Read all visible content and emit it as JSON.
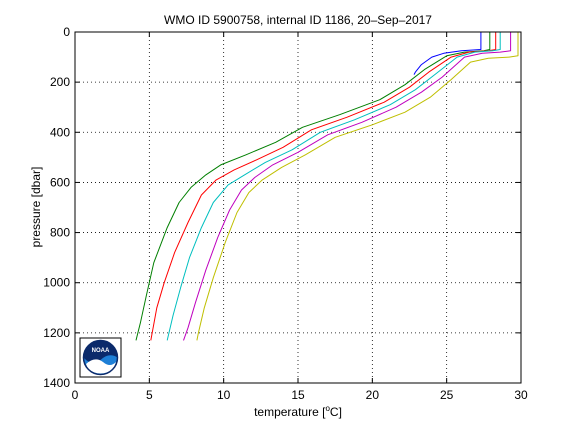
{
  "chart_data": {
    "type": "line",
    "title": "WMO ID 5900758, internal ID 1186, 20–Sep–2017",
    "xlabel_prefix": "temperature [",
    "xlabel_sup": "o",
    "xlabel_suffix": "C]",
    "ylabel": "pressure [dbar]",
    "xlim": [
      0,
      30
    ],
    "ylim": [
      0,
      1400
    ],
    "y_reversed": true,
    "grid": true,
    "x_ticks": [
      0,
      5,
      10,
      15,
      20,
      25,
      30
    ],
    "x_tick_labels": [
      "0",
      "5",
      "10",
      "15",
      "20",
      "25",
      "30"
    ],
    "y_ticks": [
      0,
      200,
      400,
      600,
      800,
      1000,
      1200,
      1400
    ],
    "y_tick_labels": [
      "0",
      "200",
      "400",
      "600",
      "800",
      "1000",
      "1200",
      "1400"
    ],
    "series": [
      {
        "color": "#0000ff",
        "points": [
          [
            27.3,
            0
          ],
          [
            27.3,
            40
          ],
          [
            27.3,
            70
          ],
          [
            26.0,
            75
          ],
          [
            24.8,
            85
          ],
          [
            24.0,
            100
          ],
          [
            23.3,
            130
          ],
          [
            22.9,
            160
          ],
          [
            22.8,
            170
          ]
        ]
      },
      {
        "color": "#007f00",
        "points": [
          [
            27.9,
            0
          ],
          [
            27.9,
            50
          ],
          [
            27.9,
            70
          ],
          [
            27.5,
            75
          ],
          [
            26.2,
            80
          ],
          [
            25.0,
            95
          ],
          [
            23.5,
            150
          ],
          [
            22.2,
            210
          ],
          [
            20.5,
            270
          ],
          [
            17.8,
            330
          ],
          [
            15.3,
            380
          ],
          [
            13.5,
            440
          ],
          [
            11.5,
            490
          ],
          [
            9.8,
            530
          ],
          [
            8.8,
            570
          ],
          [
            7.8,
            620
          ],
          [
            7.0,
            680
          ],
          [
            6.2,
            780
          ],
          [
            5.3,
            920
          ],
          [
            4.8,
            1050
          ],
          [
            4.4,
            1160
          ],
          [
            4.1,
            1230
          ]
        ]
      },
      {
        "color": "#ff0000",
        "points": [
          [
            28.3,
            0
          ],
          [
            28.3,
            50
          ],
          [
            28.3,
            70
          ],
          [
            27.8,
            75
          ],
          [
            26.5,
            80
          ],
          [
            25.3,
            100
          ],
          [
            23.8,
            160
          ],
          [
            22.5,
            220
          ],
          [
            20.8,
            280
          ],
          [
            18.3,
            340
          ],
          [
            15.9,
            390
          ],
          [
            14.0,
            460
          ],
          [
            12.2,
            510
          ],
          [
            10.7,
            550
          ],
          [
            9.5,
            590
          ],
          [
            8.5,
            650
          ],
          [
            7.6,
            760
          ],
          [
            6.7,
            880
          ],
          [
            6.0,
            1000
          ],
          [
            5.5,
            1100
          ],
          [
            5.1,
            1230
          ]
        ]
      },
      {
        "color": "#00bfbf",
        "points": [
          [
            28.6,
            0
          ],
          [
            28.6,
            50
          ],
          [
            28.6,
            70
          ],
          [
            28.1,
            75
          ],
          [
            26.9,
            80
          ],
          [
            25.7,
            100
          ],
          [
            24.2,
            170
          ],
          [
            22.9,
            230
          ],
          [
            21.2,
            290
          ],
          [
            18.8,
            350
          ],
          [
            16.5,
            400
          ],
          [
            14.6,
            470
          ],
          [
            12.8,
            520
          ],
          [
            11.4,
            570
          ],
          [
            10.3,
            610
          ],
          [
            9.3,
            680
          ],
          [
            8.5,
            780
          ],
          [
            7.7,
            900
          ],
          [
            7.1,
            1020
          ],
          [
            6.6,
            1130
          ],
          [
            6.2,
            1230
          ]
        ]
      },
      {
        "color": "#bf00bf",
        "points": [
          [
            29.3,
            0
          ],
          [
            29.3,
            50
          ],
          [
            29.3,
            75
          ],
          [
            28.6,
            80
          ],
          [
            27.4,
            85
          ],
          [
            26.2,
            100
          ],
          [
            24.7,
            180
          ],
          [
            23.3,
            240
          ],
          [
            21.6,
            300
          ],
          [
            19.3,
            360
          ],
          [
            17.0,
            410
          ],
          [
            15.0,
            480
          ],
          [
            13.3,
            530
          ],
          [
            12.1,
            580
          ],
          [
            11.2,
            630
          ],
          [
            10.4,
            710
          ],
          [
            9.6,
            820
          ],
          [
            8.8,
            950
          ],
          [
            8.1,
            1080
          ],
          [
            7.6,
            1180
          ],
          [
            7.3,
            1230
          ]
        ]
      },
      {
        "color": "#bfbf00",
        "points": [
          [
            29.8,
            0
          ],
          [
            29.8,
            50
          ],
          [
            29.8,
            95
          ],
          [
            29.2,
            100
          ],
          [
            27.8,
            105
          ],
          [
            26.6,
            120
          ],
          [
            25.3,
            190
          ],
          [
            23.9,
            260
          ],
          [
            22.2,
            320
          ],
          [
            20.0,
            370
          ],
          [
            17.5,
            420
          ],
          [
            15.5,
            490
          ],
          [
            13.9,
            540
          ],
          [
            12.6,
            590
          ],
          [
            11.7,
            640
          ],
          [
            10.9,
            720
          ],
          [
            10.1,
            840
          ],
          [
            9.3,
            980
          ],
          [
            8.7,
            1100
          ],
          [
            8.3,
            1200
          ],
          [
            8.2,
            1230
          ]
        ]
      },
      {
        "color": "#000000",
        "points": [
          [
            30.0,
            0
          ],
          [
            30.0,
            100
          ]
        ]
      }
    ]
  },
  "logo": {
    "name": "noaa-logo",
    "text": "NOAA"
  }
}
